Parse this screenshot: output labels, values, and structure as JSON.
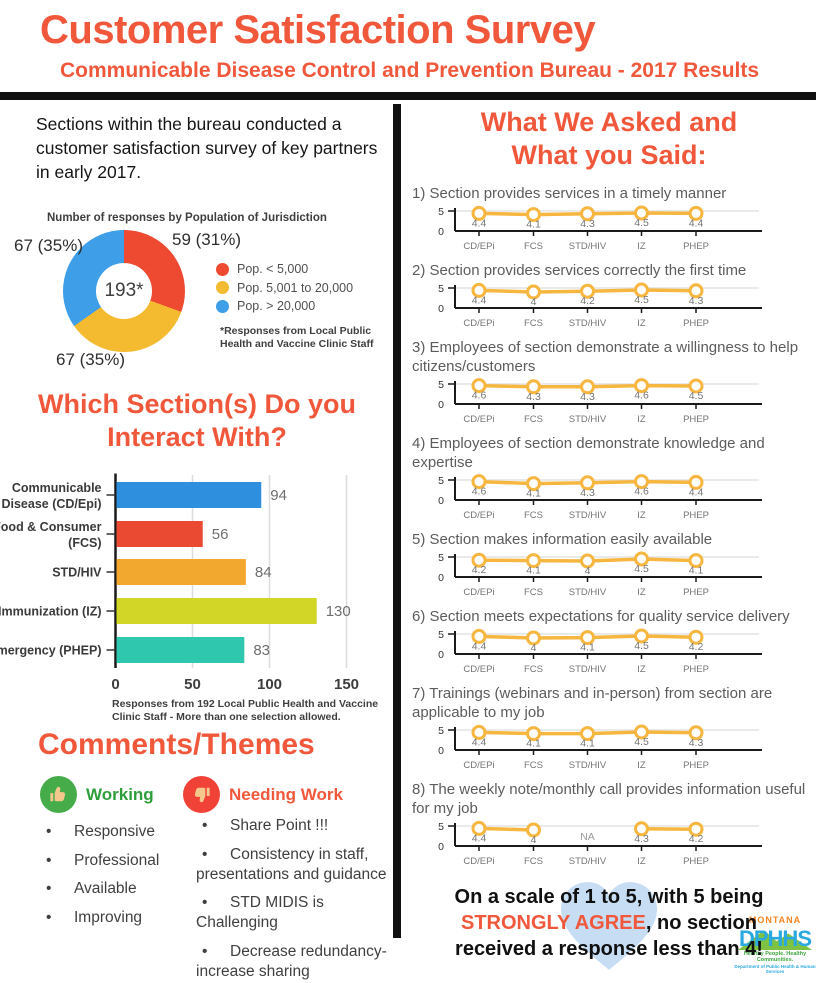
{
  "accent": "#F1573B",
  "header": {
    "title": "Customer Satisfaction Survey",
    "subtitle": "Communicable Disease Control and Prevention Bureau - 2017 Results"
  },
  "left": {
    "intro": "Sections within the bureau conducted a customer satisfaction survey of key partners in early 2017.",
    "interact_heading": "Which Section(s) Do you Interact With?",
    "comments_heading": "Comments/Themes",
    "working": {
      "label": "Working",
      "items": [
        "Responsive",
        "Professional",
        "Available",
        "Improving"
      ]
    },
    "needing": {
      "label": "Needing Work",
      "items": [
        "Share Point !!!",
        "Consistency in staff, presentations and guidance",
        "STD MIDIS is Challenging",
        "Decrease redundancy- increase sharing"
      ]
    }
  },
  "right": {
    "heading_line1": "What We Asked and",
    "heading_line2": "What you Said:",
    "footer": {
      "pre": "On a scale of 1 to 5, with 5 being ",
      "emphasis": "STRONGLY AGREE",
      "post": ", no section received a response less than 4!"
    }
  },
  "logo": {
    "montana": "MONTANA",
    "dphhs": "DPHHS",
    "tagline1": "Healthy People.  Healthy Communities.",
    "tagline2": "Department of Public Health & Human Services"
  },
  "chart_data": [
    {
      "type": "pie",
      "donut": true,
      "title": "Number of responses by Population of Jurisdiction",
      "labels": [
        "Pop. < 5,000",
        "Pop. 5,001 to 20,000",
        "Pop. > 20,000"
      ],
      "values": [
        59,
        67,
        67
      ],
      "percents": [
        "31%",
        "35%",
        "35%"
      ],
      "colors": [
        "#EE4A32",
        "#F4BA30",
        "#3E9EE8"
      ],
      "callouts": {
        "right": "59 (31%)",
        "left": "67 (35%)",
        "bottom": "67 (35%)"
      },
      "center_label": "193*",
      "note": "*Responses from Local Public Health and Vaccine Clinic Staff"
    },
    {
      "type": "bar",
      "orientation": "horizontal",
      "title": "Which Section(s) Do you Interact With?",
      "categories": [
        "Communicable Disease (CD/Epi)",
        "Food & Consumer (FCS)",
        "STD/HIV",
        "Immunization (IZ)",
        "Emergency (PHEP)"
      ],
      "category_lines": [
        [
          "Communicable",
          "Disease (CD/Epi)"
        ],
        [
          "Food & Consumer",
          "(FCS)"
        ],
        [
          "STD/HIV"
        ],
        [
          "Immunization (IZ)"
        ],
        [
          "Emergency (PHEP)"
        ]
      ],
      "values": [
        94,
        56,
        84,
        130,
        83
      ],
      "colors": [
        "#2D8FDD",
        "#EA4A31",
        "#F2A72E",
        "#D2D626",
        "#30C7AF"
      ],
      "xticks": [
        0,
        50,
        100,
        150
      ],
      "xlim": [
        0,
        150
      ],
      "grid": true,
      "caption": "Responses from 192 Local Public Health and Vaccine Clinic Staff - More than one selection allowed."
    },
    {
      "type": "line",
      "question": "1) Section provides services in a timely manner",
      "categories": [
        "CD/EPi",
        "FCS",
        "STD/HIV",
        "IZ",
        "PHEP"
      ],
      "values": [
        4.4,
        4.1,
        4.3,
        4.5,
        4.4
      ],
      "ylim": [
        0,
        5
      ],
      "line_color": "#F6B63F"
    },
    {
      "type": "line",
      "question": "2) Section provides services correctly the first time",
      "categories": [
        "CD/EPi",
        "FCS",
        "STD/HIV",
        "IZ",
        "PHEP"
      ],
      "values": [
        4.4,
        4,
        4.2,
        4.5,
        4.3
      ],
      "ylim": [
        0,
        5
      ],
      "line_color": "#F6B63F"
    },
    {
      "type": "line",
      "question": "3) Employees of section demonstrate a willingness to help citizens/customers",
      "categories": [
        "CD/EPi",
        "FCS",
        "STD/HIV",
        "IZ",
        "PHEP"
      ],
      "values": [
        4.6,
        4.3,
        4.3,
        4.6,
        4.5
      ],
      "ylim": [
        0,
        5
      ],
      "line_color": "#F6B63F"
    },
    {
      "type": "line",
      "question": "4) Employees of section demonstrate knowledge and expertise",
      "categories": [
        "CD/EPi",
        "FCS",
        "STD/HIV",
        "IZ",
        "PHEP"
      ],
      "values": [
        4.6,
        4.1,
        4.3,
        4.6,
        4.4
      ],
      "ylim": [
        0,
        5
      ],
      "line_color": "#F6B63F"
    },
    {
      "type": "line",
      "question": "5) Section makes information easily available",
      "categories": [
        "CD/EPi",
        "FCS",
        "STD/HIV",
        "IZ",
        "PHEP"
      ],
      "values": [
        4.2,
        4.1,
        4,
        4.5,
        4.1
      ],
      "ylim": [
        0,
        5
      ],
      "line_color": "#F6B63F"
    },
    {
      "type": "line",
      "question": "6) Section meets expectations for quality service delivery",
      "categories": [
        "CD/EPi",
        "FCS",
        "STD/HIV",
        "IZ",
        "PHEP"
      ],
      "values": [
        4.4,
        4,
        4.1,
        4.5,
        4.2
      ],
      "ylim": [
        0,
        5
      ],
      "line_color": "#F6B63F"
    },
    {
      "type": "line",
      "question": "7) Trainings (webinars and in-person) from section are applicable to my job",
      "categories": [
        "CD/EPi",
        "FCS",
        "STD/HIV",
        "IZ",
        "PHEP"
      ],
      "values": [
        4.4,
        4.1,
        4.1,
        4.5,
        4.3
      ],
      "ylim": [
        0,
        5
      ],
      "line_color": "#F6B63F"
    },
    {
      "type": "line",
      "question": "8) The weekly note/monthly call provides information useful for my job",
      "categories": [
        "CD/EPi",
        "FCS",
        "STD/HIV",
        "IZ",
        "PHEP"
      ],
      "values": [
        4.4,
        4,
        "NA",
        4.3,
        4.2
      ],
      "ylim": [
        0,
        5
      ],
      "line_color": "#F6B63F"
    }
  ]
}
